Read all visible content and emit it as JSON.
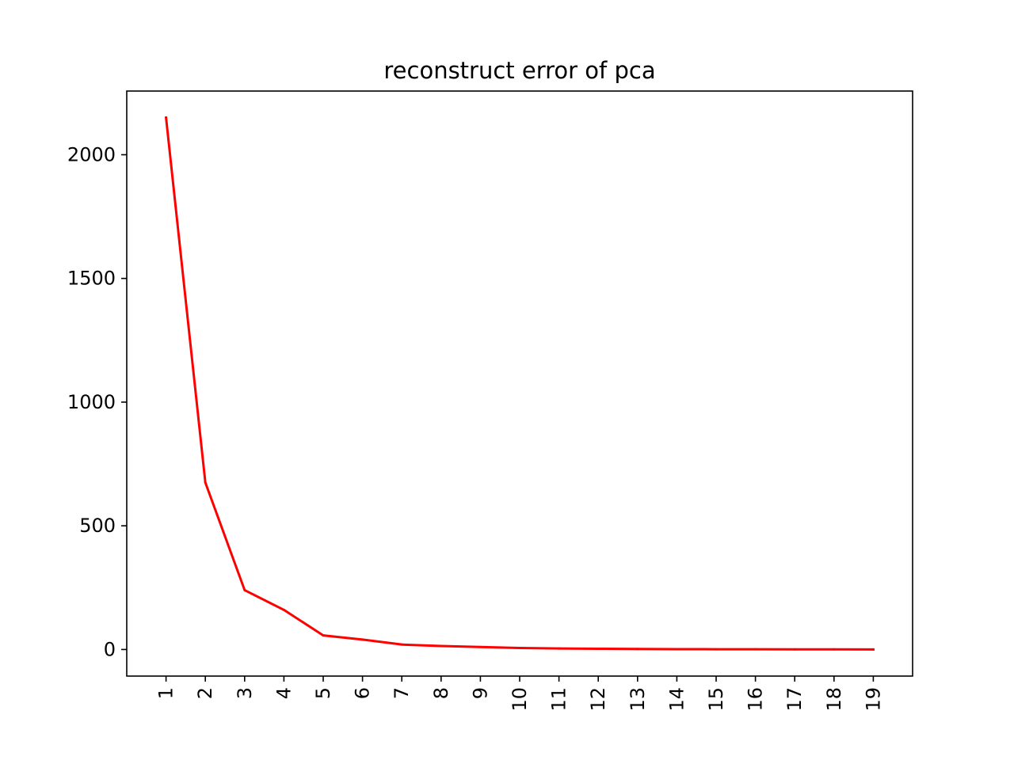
{
  "chart_data": {
    "type": "line",
    "title": "reconstruct error of pca",
    "xlabel": "",
    "ylabel": "",
    "x": [
      1,
      2,
      3,
      4,
      5,
      6,
      7,
      8,
      9,
      10,
      11,
      12,
      13,
      14,
      15,
      16,
      17,
      18,
      19
    ],
    "series": [
      {
        "color": "#ff0000",
        "values": [
          2150,
          675,
          240,
          160,
          57,
          40,
          20,
          14,
          10,
          6,
          4,
          3,
          2,
          1.5,
          1,
          1,
          0.5,
          0.5,
          0
        ]
      }
    ],
    "xticks": [
      "1",
      "2",
      "3",
      "4",
      "5",
      "6",
      "7",
      "8",
      "9",
      "10",
      "11",
      "12",
      "13",
      "14",
      "15",
      "16",
      "17",
      "18",
      "19"
    ],
    "xtick_rotation": "vertical",
    "yticks": [
      0,
      500,
      1000,
      1500,
      2000
    ],
    "ytick_labels": [
      "0",
      "500",
      "1000",
      "1500",
      "2000"
    ],
    "xlim": [
      0,
      20
    ],
    "ylim": [
      -107.5,
      2257.5
    ],
    "grid": false,
    "legend": "none"
  }
}
